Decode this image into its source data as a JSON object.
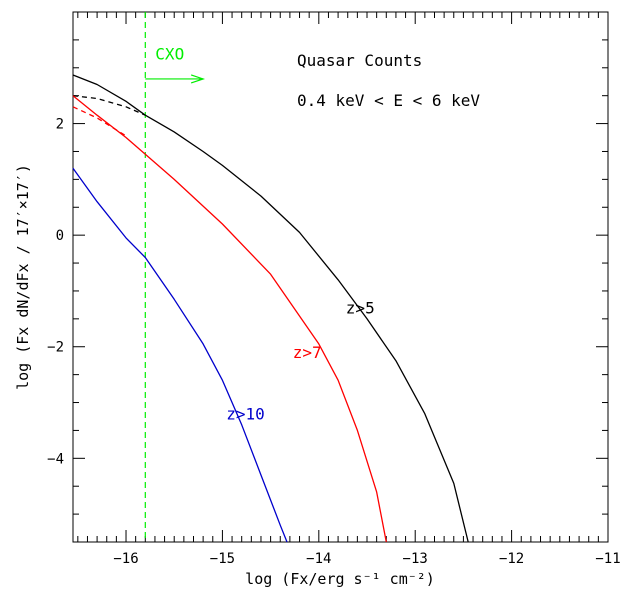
{
  "chart_data": {
    "type": "line",
    "title": "Quasar Counts",
    "subtitle": "0.4 keV < E < 6 keV",
    "xlabel": "log (Fx/erg s⁻¹ cm⁻²)",
    "ylabel": "log (Fx dN/dFx / 17′×17′)",
    "xlim": [
      -16.55,
      -11
    ],
    "ylim": [
      -5.5,
      4
    ],
    "xticks": [
      -16,
      -15,
      -14,
      -13,
      -12,
      -11
    ],
    "yticks": [
      -4,
      -2,
      0,
      2
    ],
    "grid": false,
    "legend": "none",
    "series": [
      {
        "name": "z>5",
        "color": "#000000",
        "dash": "solid",
        "x": [
          -16.55,
          -16.3,
          -16.0,
          -15.8,
          -15.5,
          -15.2,
          -15.0,
          -14.6,
          -14.2,
          -13.8,
          -13.5,
          -13.2,
          -12.9,
          -12.6,
          -12.45
        ],
        "y": [
          2.87,
          2.7,
          2.4,
          2.15,
          1.85,
          1.5,
          1.25,
          0.7,
          0.05,
          -0.8,
          -1.5,
          -2.25,
          -3.2,
          -4.45,
          -5.5
        ]
      },
      {
        "name": "z>5",
        "color": "#000000",
        "dash": "dashed",
        "x": [
          -16.55,
          -16.3,
          -16.0,
          -15.8
        ],
        "y": [
          2.5,
          2.45,
          2.3,
          2.15
        ]
      },
      {
        "name": "z>7",
        "color": "#ff0000",
        "dash": "solid",
        "x": [
          -16.55,
          -16.3,
          -16.0,
          -15.8,
          -15.5,
          -15.0,
          -14.5,
          -14.0,
          -13.8,
          -13.6,
          -13.4,
          -13.3
        ],
        "y": [
          2.5,
          2.15,
          1.75,
          1.45,
          1.0,
          0.2,
          -0.7,
          -1.95,
          -2.6,
          -3.5,
          -4.6,
          -5.5
        ]
      },
      {
        "name": "z>7",
        "color": "#ff0000",
        "dash": "dashed",
        "x": [
          -16.55,
          -16.3,
          -16.0
        ],
        "y": [
          2.3,
          2.1,
          1.78
        ]
      },
      {
        "name": "z>10",
        "color": "#0000cc",
        "dash": "solid",
        "x": [
          -16.55,
          -16.3,
          -16.0,
          -15.8,
          -15.5,
          -15.2,
          -15.0,
          -14.8,
          -14.6,
          -14.4,
          -14.33
        ],
        "y": [
          1.2,
          0.6,
          -0.05,
          -0.4,
          -1.15,
          -1.95,
          -2.6,
          -3.4,
          -4.3,
          -5.2,
          -5.5
        ]
      }
    ],
    "annotations": [
      {
        "text": "z>5",
        "x": -13.72,
        "y": -1.4,
        "color": "#000000"
      },
      {
        "text": "z>7",
        "x": -14.27,
        "y": -2.2,
        "color": "#ff0000"
      },
      {
        "text": "z>10",
        "x": -14.96,
        "y": -3.3,
        "color": "#0000cc"
      }
    ],
    "limit": {
      "label": "CXO",
      "x": -15.8,
      "color": "#00ee00",
      "arrow_y": 2.8,
      "arrow_to_x": -15.2,
      "label_y": 3.15
    }
  }
}
